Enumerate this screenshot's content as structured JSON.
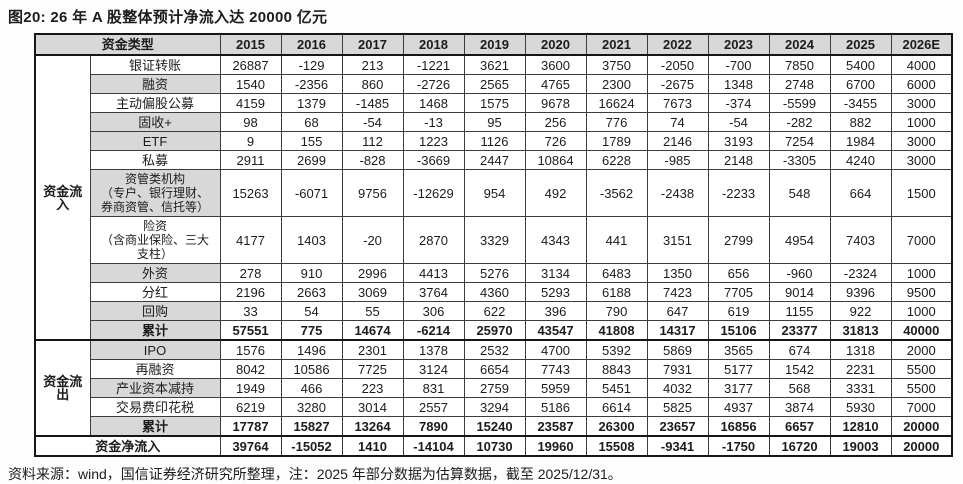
{
  "title": "图20: 26 年 A 股整体预计净流入达 20000 亿元",
  "footer": "资料来源：wind，国信证券经济研究所整理，注：2025 年部分数据为估算数据，截至 2025/12/31。",
  "colors": {
    "header_bg": "#d8d8d8",
    "shaded_bg": "#d8d8d8",
    "grid": "#3c3c3c",
    "grid_strong": "#161616",
    "page_bg": "#fdfdfd",
    "text": "#1c1c1c"
  },
  "table": {
    "header": [
      "资金类型",
      "2015",
      "2016",
      "2017",
      "2018",
      "2019",
      "2020",
      "2021",
      "2022",
      "2023",
      "2024",
      "2025",
      "2026E"
    ],
    "sections": [
      {
        "group": "资金流入",
        "rows": [
          {
            "label": "银证转账",
            "shaded": false,
            "bold": false,
            "multiline": false,
            "values": [
              26887,
              -129,
              213,
              -1221,
              3621,
              3600,
              3750,
              -2050,
              -700,
              7850,
              5400,
              4000
            ]
          },
          {
            "label": "融资",
            "shaded": true,
            "bold": false,
            "multiline": false,
            "values": [
              1540,
              -2356,
              860,
              -2726,
              2565,
              4765,
              2300,
              -2675,
              1348,
              2748,
              6700,
              6000
            ]
          },
          {
            "label": "主动偏股公募",
            "shaded": false,
            "bold": false,
            "multiline": false,
            "values": [
              4159,
              1379,
              -1485,
              1468,
              1575,
              9678,
              16624,
              7673,
              -374,
              -5599,
              -3455,
              3000
            ]
          },
          {
            "label": "固收+",
            "shaded": true,
            "bold": false,
            "multiline": false,
            "values": [
              98,
              68,
              -54,
              -13,
              95,
              256,
              776,
              74,
              -54,
              -282,
              882,
              1000
            ]
          },
          {
            "label": "ETF",
            "shaded": true,
            "bold": false,
            "multiline": false,
            "values": [
              9,
              155,
              112,
              1223,
              1126,
              726,
              1789,
              2146,
              3193,
              7254,
              1984,
              3000
            ]
          },
          {
            "label": "私募",
            "shaded": false,
            "bold": false,
            "multiline": false,
            "values": [
              2911,
              2699,
              -828,
              -3669,
              2447,
              10864,
              6228,
              -985,
              2148,
              -3305,
              4240,
              3000
            ]
          },
          {
            "label": "资管类机构\n（专户、银行理财、\n券商资管、信托等）",
            "shaded": true,
            "bold": false,
            "multiline": true,
            "values": [
              15263,
              -6071,
              9756,
              -12629,
              954,
              492,
              -3562,
              -2438,
              -2233,
              548,
              664,
              1500
            ]
          },
          {
            "label": "险资\n（含商业保险、三大\n支柱）",
            "shaded": false,
            "bold": false,
            "multiline": true,
            "values": [
              4177,
              1403,
              -20,
              2870,
              3329,
              4343,
              441,
              3151,
              2799,
              4954,
              7403,
              7000
            ]
          },
          {
            "label": "外资",
            "shaded": true,
            "bold": false,
            "multiline": false,
            "values": [
              278,
              910,
              2996,
              4413,
              5276,
              3134,
              6483,
              1350,
              656,
              -960,
              -2324,
              1000
            ]
          },
          {
            "label": "分红",
            "shaded": false,
            "bold": false,
            "multiline": false,
            "values": [
              2196,
              2663,
              3069,
              3764,
              4360,
              5293,
              6188,
              7423,
              7705,
              9014,
              9396,
              9500
            ]
          },
          {
            "label": "回购",
            "shaded": true,
            "bold": false,
            "multiline": false,
            "values": [
              33,
              54,
              55,
              306,
              622,
              396,
              790,
              647,
              619,
              1155,
              922,
              1000
            ]
          },
          {
            "label": "累计",
            "shaded": true,
            "bold": true,
            "multiline": false,
            "values": [
              57551,
              775,
              14674,
              -6214,
              25970,
              43547,
              41808,
              14317,
              15106,
              23377,
              31813,
              40000
            ]
          }
        ]
      },
      {
        "group": "资金流出",
        "rows": [
          {
            "label": "IPO",
            "shaded": true,
            "bold": false,
            "multiline": false,
            "values": [
              1576,
              1496,
              2301,
              1378,
              2532,
              4700,
              5392,
              5869,
              3565,
              674,
              1318,
              2000
            ]
          },
          {
            "label": "再融资",
            "shaded": false,
            "bold": false,
            "multiline": false,
            "values": [
              8042,
              10586,
              7725,
              3124,
              6654,
              7743,
              8843,
              7931,
              5177,
              1542,
              2231,
              5500
            ]
          },
          {
            "label": "产业资本减持",
            "shaded": true,
            "bold": false,
            "multiline": false,
            "values": [
              1949,
              466,
              223,
              831,
              2759,
              5959,
              5451,
              4032,
              3177,
              568,
              3331,
              5500
            ]
          },
          {
            "label": "交易费印花税",
            "shaded": false,
            "bold": false,
            "multiline": false,
            "values": [
              6219,
              3280,
              3014,
              2557,
              3294,
              5186,
              6614,
              5825,
              4937,
              3874,
              5930,
              7000
            ]
          },
          {
            "label": "累计",
            "shaded": true,
            "bold": true,
            "multiline": false,
            "values": [
              17787,
              15827,
              13264,
              7890,
              15240,
              23587,
              26300,
              23657,
              16856,
              6657,
              12810,
              20000
            ]
          }
        ]
      }
    ],
    "net_row": {
      "label": "资金净流入",
      "values": [
        39764,
        -15052,
        1410,
        -14104,
        10730,
        19960,
        15508,
        -9341,
        -1750,
        16720,
        19003,
        20000
      ]
    }
  }
}
